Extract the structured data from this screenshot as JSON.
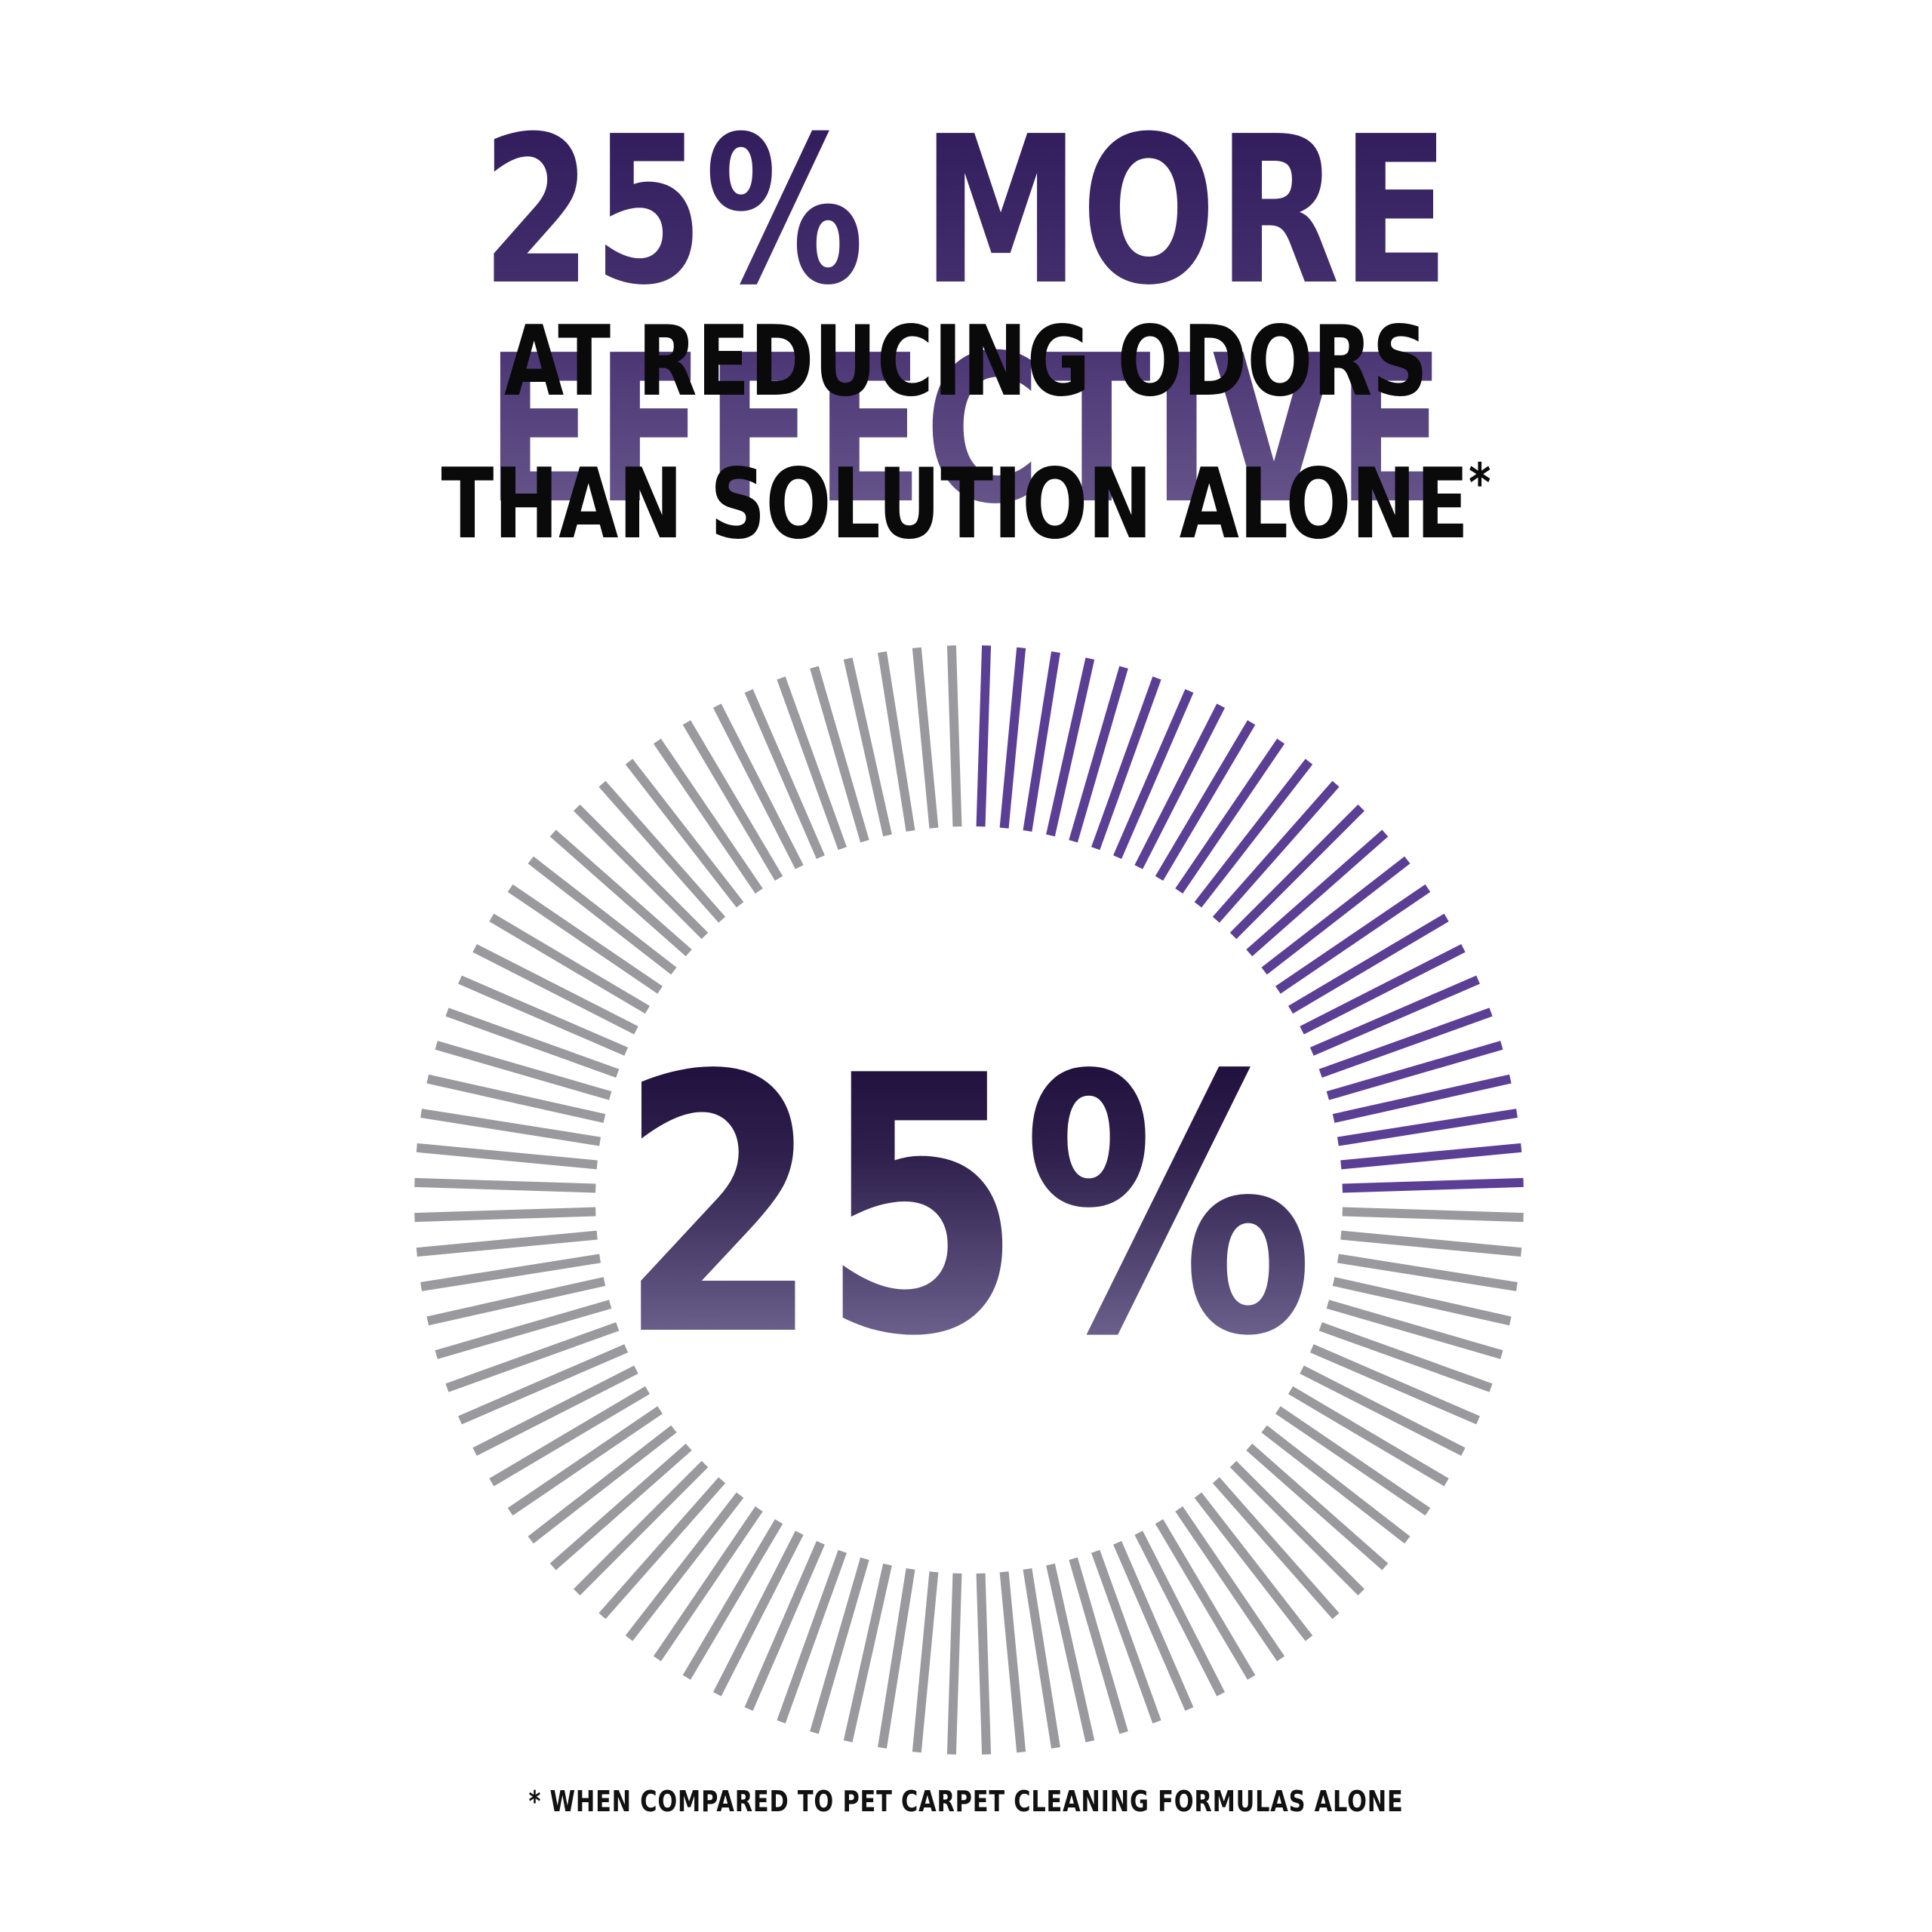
{
  "headline": "25% MORE EFFECTIVE",
  "subheadline_line1": "AT REDUCING ODORS",
  "subheadline_line2": "THAN SOLUTION ALONE",
  "subheadline_marker": "*",
  "footnote": "* WHEN COMPARED TO PET CARPET CLEANING FORMULAS ALONE",
  "chart_data": {
    "type": "radial-gauge",
    "value_label": "25%",
    "value": 25,
    "max": 100,
    "tick_count": 100,
    "filled_color": "#5b3f95",
    "unfilled_color": "#9a9a9e"
  }
}
